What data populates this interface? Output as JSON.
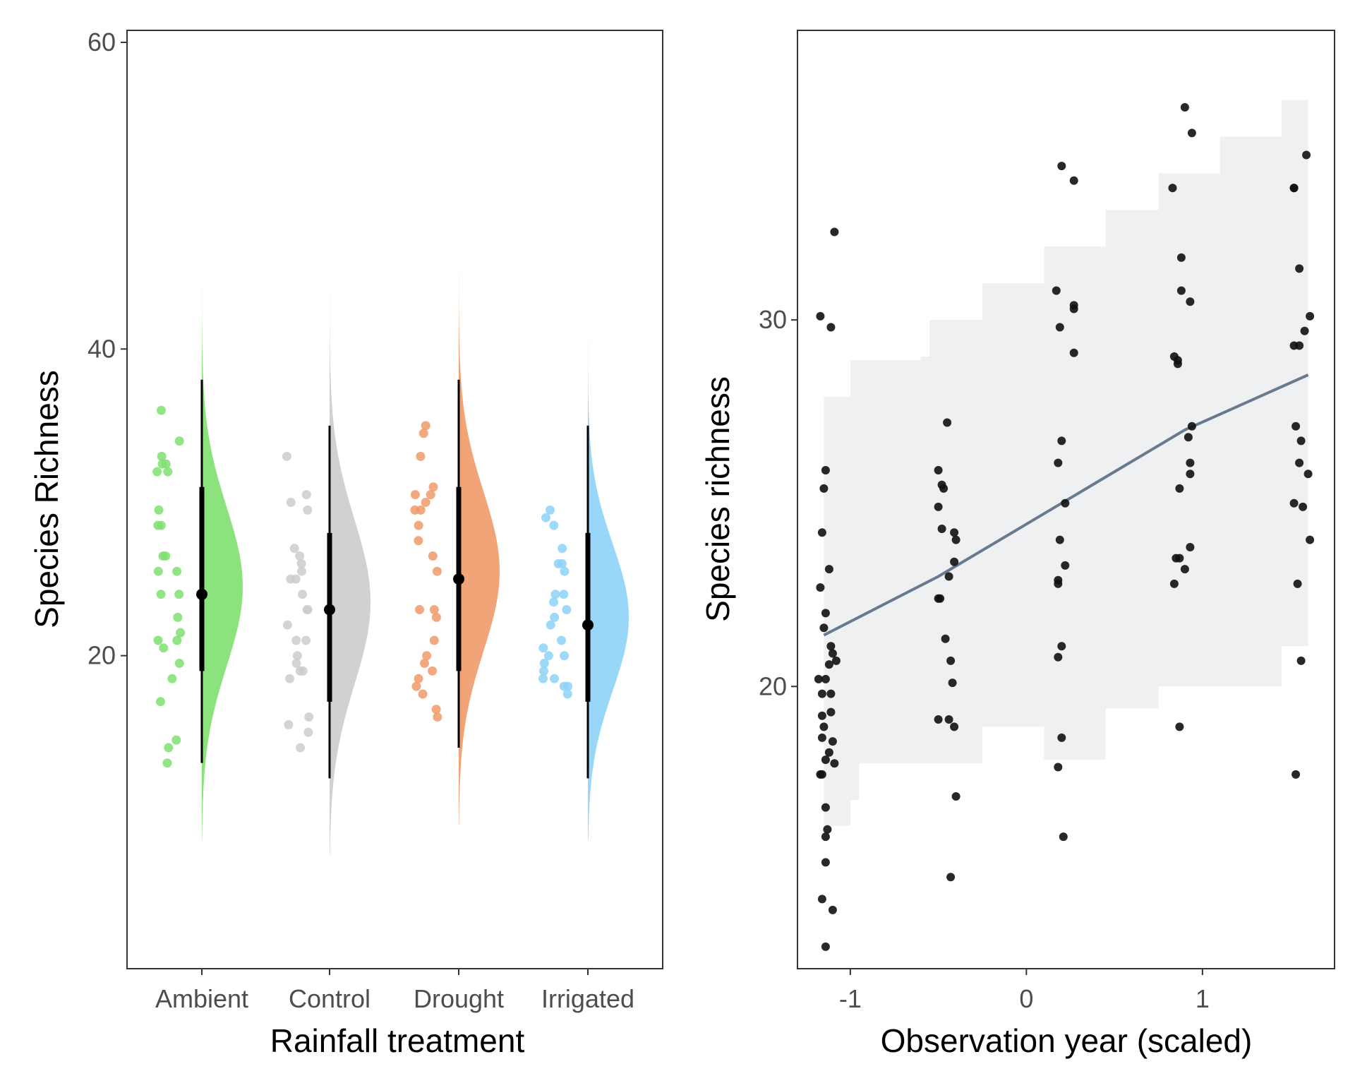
{
  "chart_data": [
    {
      "type": "raincloud",
      "xlabel": "Rainfall treatment",
      "ylabel": "Species Richness",
      "ylim": [
        0,
        60
      ],
      "yticks": [
        20,
        40,
        60
      ],
      "categories": [
        "Ambient",
        "Control",
        "Drought",
        "Irrigated"
      ],
      "groups": [
        {
          "name": "Ambient",
          "color": "#7FE070",
          "median": 24,
          "interval_thick": [
            19,
            31
          ],
          "interval_thin": [
            13,
            38
          ],
          "density_range": [
            8,
            46
          ],
          "density_peak": 24.5,
          "density_sd": 5.2,
          "points": [
            36,
            34,
            33,
            32.5,
            32.5,
            32,
            32,
            29.5,
            28.5,
            28.5,
            26.5,
            26.5,
            25.5,
            25.5,
            24,
            24,
            22.5,
            21.5,
            21,
            21,
            20.5,
            19.5,
            18.5,
            17,
            14.5,
            14,
            13
          ]
        },
        {
          "name": "Control",
          "color": "#CCCCCC",
          "median": 23,
          "interval_thick": [
            17,
            28
          ],
          "interval_thin": [
            12,
            35
          ],
          "density_range": [
            7,
            44
          ],
          "density_peak": 23.5,
          "density_sd": 5.4,
          "points": [
            33,
            30.5,
            30,
            29.5,
            27,
            26.5,
            26,
            25.5,
            25,
            25,
            24,
            23,
            23,
            22,
            21,
            21,
            20,
            19.5,
            19,
            19,
            18.5,
            16,
            15.5,
            15,
            14
          ]
        },
        {
          "name": "Drought",
          "color": "#F09A68",
          "median": 25,
          "interval_thick": [
            19,
            31
          ],
          "interval_thin": [
            14,
            38
          ],
          "density_range": [
            9,
            45
          ],
          "density_peak": 25.5,
          "density_sd": 5.2,
          "points": [
            35,
            34.5,
            33,
            31,
            30.5,
            30.5,
            30,
            29.5,
            29.5,
            28.5,
            27.5,
            26.5,
            25.5,
            23,
            23,
            22.5,
            21,
            20,
            19.5,
            19,
            18.5,
            18,
            17.5,
            16.5,
            16
          ]
        },
        {
          "name": "Irrigated",
          "color": "#8DD3F7",
          "median": 22,
          "interval_thick": [
            17,
            28
          ],
          "interval_thin": [
            12,
            35
          ],
          "density_range": [
            8,
            42
          ],
          "density_peak": 22.5,
          "density_sd": 4.8,
          "points": [
            29.5,
            29,
            28.5,
            27,
            26,
            26,
            25.5,
            24,
            24,
            23.5,
            23,
            22.5,
            22,
            21,
            20.5,
            20,
            20,
            19.5,
            19,
            18.5,
            18.5,
            18,
            18,
            17.5
          ]
        }
      ]
    },
    {
      "type": "scatter",
      "xlabel": "Observation year (scaled)",
      "ylabel": "Species richness",
      "xlim": [
        -1.3,
        1.75
      ],
      "ylim": [
        12.3,
        37.9
      ],
      "xticks": [
        -1,
        0,
        1
      ],
      "yticks": [
        20,
        30
      ],
      "point_color": "#111111",
      "trend": {
        "color": "#6A7A8E",
        "points": [
          [
            -1.15,
            21.4
          ],
          [
            -0.5,
            23.0
          ],
          [
            0.2,
            25.0
          ],
          [
            0.9,
            27.0
          ],
          [
            1.6,
            28.5
          ]
        ]
      },
      "ribbon": {
        "color": "#EFF0F1",
        "steps": [
          {
            "x0": -1.15,
            "x1": -1.0,
            "lo": 16.2,
            "hi": 27.9
          },
          {
            "x0": -1.0,
            "x1": -0.95,
            "lo": 16.9,
            "hi": 28.9
          },
          {
            "x0": -0.95,
            "x1": -0.6,
            "lo": 17.9,
            "hi": 28.9
          },
          {
            "x0": -0.6,
            "x1": -0.55,
            "lo": 17.9,
            "hi": 29.0
          },
          {
            "x0": -0.55,
            "x1": -0.25,
            "lo": 17.9,
            "hi": 30.0
          },
          {
            "x0": -0.25,
            "x1": 0.1,
            "lo": 18.9,
            "hi": 31.0
          },
          {
            "x0": 0.1,
            "x1": 0.45,
            "lo": 18.0,
            "hi": 32.0
          },
          {
            "x0": 0.45,
            "x1": 0.75,
            "lo": 19.4,
            "hi": 33.0
          },
          {
            "x0": 0.75,
            "x1": 1.1,
            "lo": 20.0,
            "hi": 34.0
          },
          {
            "x0": 1.1,
            "x1": 1.45,
            "lo": 20.0,
            "hi": 35.0
          },
          {
            "x0": 1.45,
            "x1": 1.6,
            "lo": 21.1,
            "hi": 36.0
          }
        ]
      },
      "points": [
        [
          -1.17,
          30.1
        ],
        [
          -1.11,
          29.8
        ],
        [
          -1.09,
          32.4
        ],
        [
          -1.14,
          25.9
        ],
        [
          -1.15,
          25.4
        ],
        [
          -1.16,
          24.2
        ],
        [
          -1.12,
          23.2
        ],
        [
          -1.17,
          22.7
        ],
        [
          -1.14,
          22.0
        ],
        [
          -1.15,
          21.6
        ],
        [
          -1.11,
          21.1
        ],
        [
          -1.1,
          20.9
        ],
        [
          -1.12,
          20.6
        ],
        [
          -1.08,
          20.7
        ],
        [
          -1.18,
          20.2
        ],
        [
          -1.14,
          20.2
        ],
        [
          -1.16,
          19.8
        ],
        [
          -1.11,
          19.8
        ],
        [
          -1.16,
          19.2
        ],
        [
          -1.11,
          19.3
        ],
        [
          -1.15,
          18.9
        ],
        [
          -1.16,
          18.6
        ],
        [
          -1.1,
          18.5
        ],
        [
          -1.12,
          18.2
        ],
        [
          -1.14,
          18.0
        ],
        [
          -1.09,
          17.9
        ],
        [
          -1.17,
          17.6
        ],
        [
          -1.16,
          17.6
        ],
        [
          -1.14,
          16.7
        ],
        [
          -1.13,
          16.1
        ],
        [
          -1.14,
          15.9
        ],
        [
          -1.14,
          15.2
        ],
        [
          -1.16,
          14.2
        ],
        [
          -1.1,
          13.9
        ],
        [
          -1.14,
          12.9
        ],
        [
          -0.45,
          27.2
        ],
        [
          -0.5,
          25.9
        ],
        [
          -0.48,
          25.5
        ],
        [
          -0.47,
          25.4
        ],
        [
          -0.5,
          24.9
        ],
        [
          -0.48,
          24.3
        ],
        [
          -0.41,
          24.2
        ],
        [
          -0.4,
          24.0
        ],
        [
          -0.41,
          23.4
        ],
        [
          -0.44,
          23.0
        ],
        [
          -0.5,
          22.4
        ],
        [
          -0.49,
          22.4
        ],
        [
          -0.46,
          21.3
        ],
        [
          -0.43,
          20.7
        ],
        [
          -0.42,
          20.1
        ],
        [
          -0.5,
          19.1
        ],
        [
          -0.44,
          19.1
        ],
        [
          -0.41,
          18.9
        ],
        [
          -0.4,
          17.0
        ],
        [
          -0.43,
          14.8
        ],
        [
          0.2,
          34.2
        ],
        [
          0.27,
          33.8
        ],
        [
          0.17,
          30.8
        ],
        [
          0.19,
          29.8
        ],
        [
          0.27,
          30.4
        ],
        [
          0.27,
          30.3
        ],
        [
          0.27,
          29.1
        ],
        [
          0.2,
          26.7
        ],
        [
          0.18,
          26.1
        ],
        [
          0.22,
          25.0
        ],
        [
          0.19,
          24.0
        ],
        [
          0.22,
          23.3
        ],
        [
          0.18,
          22.9
        ],
        [
          0.18,
          22.8
        ],
        [
          0.2,
          21.1
        ],
        [
          0.18,
          20.8
        ],
        [
          0.2,
          18.6
        ],
        [
          0.18,
          17.8
        ],
        [
          0.21,
          15.9
        ],
        [
          0.9,
          35.8
        ],
        [
          0.94,
          35.1
        ],
        [
          0.83,
          33.6
        ],
        [
          0.88,
          31.7
        ],
        [
          0.88,
          30.8
        ],
        [
          0.93,
          30.5
        ],
        [
          0.84,
          29.0
        ],
        [
          0.86,
          28.9
        ],
        [
          0.86,
          28.8
        ],
        [
          0.94,
          27.1
        ],
        [
          0.92,
          26.8
        ],
        [
          0.93,
          26.1
        ],
        [
          0.93,
          25.8
        ],
        [
          0.87,
          25.4
        ],
        [
          0.93,
          23.8
        ],
        [
          0.85,
          23.5
        ],
        [
          0.87,
          23.5
        ],
        [
          0.9,
          23.2
        ],
        [
          0.84,
          22.8
        ],
        [
          0.87,
          18.9
        ],
        [
          1.59,
          34.5
        ],
        [
          1.52,
          33.6
        ],
        [
          1.52,
          33.6
        ],
        [
          1.55,
          31.4
        ],
        [
          1.61,
          30.1
        ],
        [
          1.58,
          29.7
        ],
        [
          1.52,
          29.3
        ],
        [
          1.55,
          29.3
        ],
        [
          1.53,
          27.1
        ],
        [
          1.56,
          26.7
        ],
        [
          1.55,
          26.1
        ],
        [
          1.6,
          25.8
        ],
        [
          1.52,
          25.0
        ],
        [
          1.57,
          24.9
        ],
        [
          1.61,
          24.0
        ],
        [
          1.54,
          22.8
        ],
        [
          1.56,
          20.7
        ],
        [
          1.53,
          17.6
        ]
      ]
    }
  ]
}
